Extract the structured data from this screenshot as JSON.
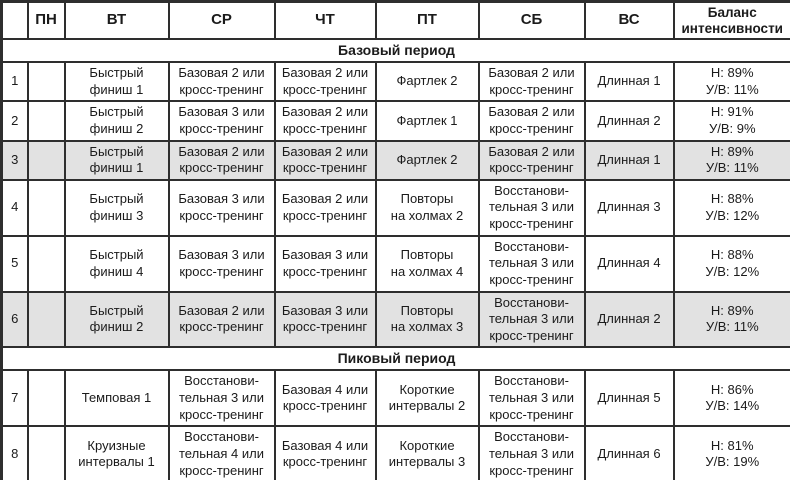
{
  "table": {
    "columns": [
      {
        "key": "num",
        "label": ""
      },
      {
        "key": "mon",
        "label": "ПН"
      },
      {
        "key": "tue",
        "label": "ВТ"
      },
      {
        "key": "wed",
        "label": "СР"
      },
      {
        "key": "thu",
        "label": "ЧТ"
      },
      {
        "key": "fri",
        "label": "ПТ"
      },
      {
        "key": "sat",
        "label": "СБ"
      },
      {
        "key": "sun",
        "label": "ВС"
      },
      {
        "key": "balance",
        "label": "Баланс\nинтенсивности"
      }
    ],
    "sections": [
      {
        "title": "Базовый период",
        "rows": [
          {
            "num": "1",
            "mon": "",
            "tue": "Быстрый\nфиниш 1",
            "wed": "Базовая 2 или\nкросс-тренинг",
            "thu": "Базовая 2 или\nкросс-тренинг",
            "fri": "Фартлек 2",
            "sat": "Базовая 2 или\nкросс-тренинг",
            "sun": "Длинная 1",
            "balance": "Н: 89%\nУ/В: 11%",
            "shaded": false
          },
          {
            "num": "2",
            "mon": "",
            "tue": "Быстрый\nфиниш 2",
            "wed": "Базовая 3 или\nкросс-тренинг",
            "thu": "Базовая 2 или\nкросс-тренинг",
            "fri": "Фартлек 1",
            "sat": "Базовая 2 или\nкросс-тренинг",
            "sun": "Длинная 2",
            "balance": "Н: 91%\nУ/В: 9%",
            "shaded": false
          },
          {
            "num": "3",
            "mon": "",
            "tue": "Быстрый\nфиниш 1",
            "wed": "Базовая 2 или\nкросс-тренинг",
            "thu": "Базовая 2 или\nкросс-тренинг",
            "fri": "Фартлек 2",
            "sat": "Базовая 2 или\nкросс-тренинг",
            "sun": "Длинная 1",
            "balance": "Н: 89%\nУ/В: 11%",
            "shaded": true
          },
          {
            "num": "4",
            "mon": "",
            "tue": "Быстрый\nфиниш 3",
            "wed": "Базовая 3 или\nкросс-тренинг",
            "thu": "Базовая 2 или\nкросс-тренинг",
            "fri": "Повторы\nна холмах 2",
            "sat": "Восстанови-\nтельная 3 или\nкросс-тренинг",
            "sun": "Длинная 3",
            "balance": "Н: 88%\nУ/В: 12%",
            "shaded": false
          },
          {
            "num": "5",
            "mon": "",
            "tue": "Быстрый\nфиниш 4",
            "wed": "Базовая 3 или\nкросс-тренинг",
            "thu": "Базовая 3 или\nкросс-тренинг",
            "fri": "Повторы\nна холмах 4",
            "sat": "Восстанови-\nтельная 3 или\nкросс-тренинг",
            "sun": "Длинная 4",
            "balance": "Н: 88%\nУ/В: 12%",
            "shaded": false
          },
          {
            "num": "6",
            "mon": "",
            "tue": "Быстрый\nфиниш 2",
            "wed": "Базовая 2 или\nкросс-тренинг",
            "thu": "Базовая 3 или\nкросс-тренинг",
            "fri": "Повторы\nна холмах 3",
            "sat": "Восстанови-\nтельная 3 или\nкросс-тренинг",
            "sun": "Длинная 2",
            "balance": "Н: 89%\nУ/В: 11%",
            "shaded": true
          }
        ]
      },
      {
        "title": "Пиковый период",
        "rows": [
          {
            "num": "7",
            "mon": "",
            "tue": "Темповая 1",
            "wed": "Восстанови-\nтельная 3 или\nкросс-тренинг",
            "thu": "Базовая 4 или\nкросс-тренинг",
            "fri": "Короткие\nинтервалы 2",
            "sat": "Восстанови-\nтельная 3 или\nкросс-тренинг",
            "sun": "Длинная 5",
            "balance": "Н: 86%\nУ/В: 14%",
            "shaded": false
          },
          {
            "num": "8",
            "mon": "",
            "tue": "Круизные\nинтервалы 1",
            "wed": "Восстанови-\nтельная 4 или\nкросс-тренинг",
            "thu": "Базовая 4 или\nкросс-тренинг",
            "fri": "Короткие\nинтервалы 3",
            "sat": "Восстанови-\nтельная 3 или\nкросс-тренинг",
            "sun": "Длинная 6",
            "balance": "Н: 81%\nУ/В: 19%",
            "shaded": false
          }
        ]
      }
    ],
    "colors": {
      "border": "#2e2e2e",
      "shaded_row_bg": "#e2e2e2",
      "text": "#1b1b1b",
      "background": "#ffffff"
    }
  }
}
